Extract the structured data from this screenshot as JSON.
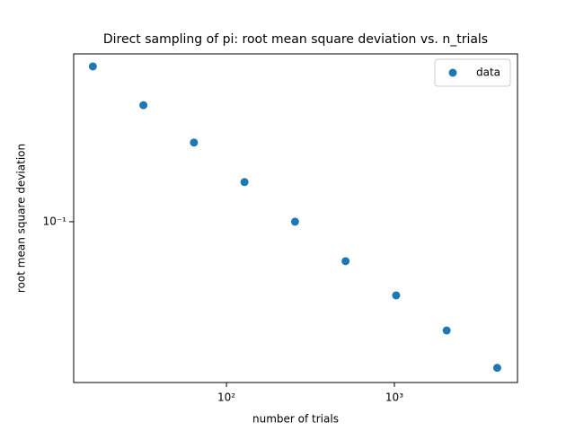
{
  "chart_data": {
    "type": "scatter",
    "title": "Direct sampling of pi: root mean square deviation vs. n_trials",
    "xlabel": "number of trials",
    "ylabel": "root mean square deviation",
    "x": [
      16,
      32,
      64,
      128,
      256,
      512,
      1024,
      2048,
      4096
    ],
    "series": [
      {
        "name": "data",
        "color": "#1f77b4",
        "values": [
          0.417,
          0.292,
          0.207,
          0.144,
          0.1,
          0.0696,
          0.0508,
          0.0368,
          0.0261
        ]
      }
    ],
    "xlim": [
      12.3,
      5410
    ],
    "ylim": [
      0.0228,
      0.468
    ],
    "xscale": "log",
    "yscale": "log",
    "xticks": [
      {
        "value": 100,
        "label": "10²"
      },
      {
        "value": 1000,
        "label": "10³"
      }
    ],
    "yticks": [
      {
        "value": 0.1,
        "label": "10⁻¹"
      }
    ],
    "legend": "upper right"
  }
}
